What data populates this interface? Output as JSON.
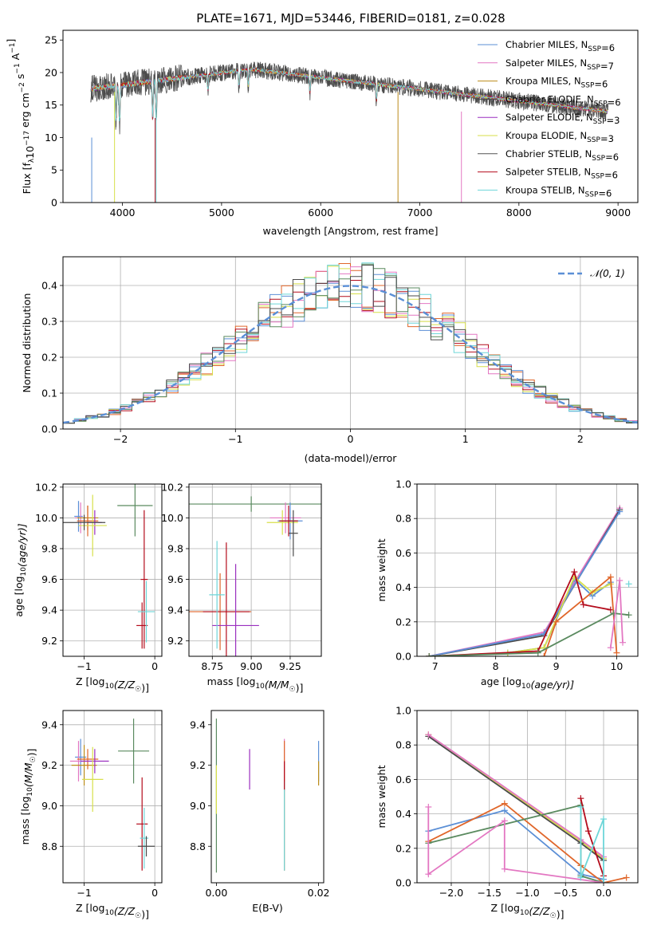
{
  "title": "PLATE=1671, MJD=53446, FIBERID=0181, z=0.028",
  "colors": {
    "series": [
      "#5b8fd6",
      "#e377c2",
      "#bb8c1a",
      "#4a4a4a",
      "#9a2fbf",
      "#d7df4a",
      "#555555",
      "#b40c1c",
      "#6ed6d8"
    ],
    "p2": [
      "#e0662a",
      "#5b8fd6",
      "#d7df4a",
      "#b40c1c",
      "#e377c2",
      "#6ed6d8",
      "#5a8a5f",
      "#4a4a4a"
    ],
    "grid": "#b0b0b0",
    "model_normal": "#5b8fd6"
  },
  "chart_data": [
    {
      "id": "spectrum",
      "type": "line",
      "xlabel": "wavelength [Angstrom, rest frame]",
      "ylabel_parts": [
        "Flux [f",
        "λ",
        "10",
        "−17",
        " erg cm",
        "−2",
        " s",
        "−1",
        " A",
        "−1",
        "]"
      ],
      "xlim": [
        3400,
        9200
      ],
      "ylim": [
        0,
        26.5
      ],
      "xticks": [
        4000,
        5000,
        6000,
        7000,
        8000,
        9000
      ],
      "yticks": [
        0,
        5,
        10,
        15,
        20,
        25
      ],
      "grid": false,
      "legend_placement": "top-right",
      "series": [
        {
          "label_main": "Chabrier MILES, N",
          "label_sub": "SSP",
          "label_tail": "=6"
        },
        {
          "label_main": "Salpeter MILES, N",
          "label_sub": "SSP",
          "label_tail": "=7"
        },
        {
          "label_main": "Kroupa MILES, N",
          "label_sub": "SSP",
          "label_tail": "=6"
        },
        {
          "label_main": "Chabrier ELODIE, N",
          "label_sub": "SSP",
          "label_tail": "=6"
        },
        {
          "label_main": "Salpeter ELODIE, N",
          "label_sub": "SSP",
          "label_tail": "=3"
        },
        {
          "label_main": "Kroupa ELODIE, N",
          "label_sub": "SSP",
          "label_tail": "=3"
        },
        {
          "label_main": "Chabrier STELIB, N",
          "label_sub": "SSP",
          "label_tail": "=6"
        },
        {
          "label_main": "Salpeter STELIB, N",
          "label_sub": "SSP",
          "label_tail": "=6"
        },
        {
          "label_main": "Kroupa STELIB, N",
          "label_sub": "SSP",
          "label_tail": "=6"
        }
      ],
      "data_approx": {
        "wl_start": 3680,
        "wl_end": 8900,
        "flux_blue": 17.5,
        "flux_peak": 20.5,
        "flux_red": 14.0,
        "absorption_features": [
          3935,
          3970,
          4305,
          4340,
          4861,
          5175,
          5270,
          5893,
          6563
        ]
      }
    },
    {
      "id": "residuals",
      "type": "histogram",
      "xlabel": "(data-model)/error",
      "ylabel": "Normed distribution",
      "xlim": [
        -2.5,
        2.5
      ],
      "ylim": [
        0,
        0.48
      ],
      "xticks": [
        -2,
        -1,
        0,
        1,
        2
      ],
      "yticks": [
        0.0,
        0.1,
        0.2,
        0.3,
        0.4
      ],
      "grid": true,
      "bin_width": 0.1,
      "bin_start": -2.5,
      "legend_placement": "top-right",
      "model": {
        "label": "𝒩(0, 1)",
        "mean": 0,
        "sigma": 1
      }
    },
    {
      "id": "age-vs-Z",
      "type": "errorbar",
      "xlabel_main": "Z [log",
      "xlabel_sub": "10",
      "xlabel_tail": "(Z/Z",
      "xlabel_sun": "☉",
      "xlabel_end": ")]",
      "ylabel_main": "age  [log",
      "ylabel_sub": "10",
      "ylabel_tail": "(age/yr)]",
      "xlim": [
        -1.3,
        0.1
      ],
      "ylim": [
        9.1,
        10.22
      ],
      "xticks": [
        -1,
        0
      ],
      "yticks": [
        9.2,
        9.4,
        9.6,
        9.8,
        10.0,
        10.2
      ],
      "grid": true,
      "points": [
        {
          "x": -1.08,
          "y": 10.01,
          "xerr": 0.06,
          "yerr": 0.1,
          "c": 0
        },
        {
          "x": -1.05,
          "y": 10.0,
          "xerr": 0.08,
          "yerr": 0.1,
          "c": 1
        },
        {
          "x": -0.95,
          "y": 10.0,
          "xerr": 0.15,
          "yerr": 0.08,
          "c": 2
        },
        {
          "x": -0.95,
          "y": 9.98,
          "xerr": 0.15,
          "yerr": 0.1,
          "c": 3
        },
        {
          "x": -0.85,
          "y": 9.97,
          "xerr": 0.1,
          "yerr": 0.08,
          "c": 4
        },
        {
          "x": -0.88,
          "y": 9.95,
          "xerr": 0.2,
          "yerr": 0.2,
          "c": 5
        },
        {
          "x": -1.0,
          "y": 9.97,
          "xerr": 0.3,
          "yerr": 0.05,
          "c": 6
        },
        {
          "x": -0.28,
          "y": 10.08,
          "xerr": 0.25,
          "yerr": 0.2,
          "c": 7
        },
        {
          "x": -0.15,
          "y": 9.6,
          "xerr": 0.05,
          "yerr": 0.45,
          "c": 8
        },
        {
          "x": -0.18,
          "y": 9.3,
          "xerr": 0.08,
          "yerr": 0.15,
          "c": 9
        },
        {
          "x": -0.12,
          "y": 9.39,
          "xerr": 0.12,
          "yerr": 0.2,
          "c": 10
        }
      ]
    },
    {
      "id": "age-vs-mass",
      "type": "errorbar",
      "xlabel_main": "mass [log",
      "xlabel_sub": "10",
      "xlabel_tail": "(M/M",
      "xlabel_sun": "☉",
      "xlabel_end": ")]",
      "xlim": [
        8.6,
        9.45
      ],
      "ylim": [
        9.1,
        10.22
      ],
      "xticks": [
        8.75,
        9.0,
        9.25
      ],
      "yticks": [
        9.2,
        9.4,
        9.6,
        9.8,
        10.0,
        10.2
      ],
      "grid": true,
      "points": [
        {
          "x": 9.0,
          "y": 10.09,
          "xerr": 0.45,
          "yerr": 0.05,
          "c": 7
        },
        {
          "x": 9.22,
          "y": 10.0,
          "xerr": 0.1,
          "yerr": 0.1,
          "c": 1
        },
        {
          "x": 9.25,
          "y": 9.98,
          "xerr": 0.08,
          "yerr": 0.12,
          "c": 0
        },
        {
          "x": 9.2,
          "y": 9.97,
          "xerr": 0.1,
          "yerr": 0.08,
          "c": 5
        },
        {
          "x": 9.24,
          "y": 9.98,
          "xerr": 0.06,
          "yerr": 0.1,
          "c": 9
        },
        {
          "x": 9.27,
          "y": 9.9,
          "xerr": 0.03,
          "yerr": 0.15,
          "c": 6
        },
        {
          "x": 8.8,
          "y": 9.39,
          "xerr": 0.2,
          "yerr": 0.25,
          "c": 3
        },
        {
          "x": 8.84,
          "y": 9.39,
          "xerr": 0.15,
          "yerr": 0.45,
          "c": 8
        },
        {
          "x": 8.9,
          "y": 9.3,
          "xerr": 0.15,
          "yerr": 0.4,
          "c": 4
        },
        {
          "x": 8.78,
          "y": 9.5,
          "xerr": 0.05,
          "yerr": 0.35,
          "c": 10
        }
      ]
    },
    {
      "id": "weight-vs-age",
      "type": "line",
      "xlabel_main": "age  [log",
      "xlabel_sub": "10",
      "xlabel_tail": "(age/yr)]",
      "ylabel": "mass weight",
      "xlim": [
        6.7,
        10.35
      ],
      "ylim": [
        0,
        1.0
      ],
      "xticks": [
        7,
        8,
        9,
        10
      ],
      "yticks": [
        0.0,
        0.2,
        0.4,
        0.6,
        0.8,
        1.0
      ],
      "grid": true,
      "series": [
        {
          "c": 1,
          "x": [
            6.9,
            8.8,
            10.05
          ],
          "y": [
            0.0,
            0.14,
            0.86
          ]
        },
        {
          "c": 6,
          "x": [
            6.9,
            8.8,
            10.05
          ],
          "y": [
            0.0,
            0.12,
            0.85
          ]
        },
        {
          "c": 4,
          "x": [
            6.9,
            8.8,
            10.05
          ],
          "y": [
            0.0,
            0.13,
            0.84
          ]
        },
        {
          "c": 0,
          "x": [
            6.9,
            8.2,
            8.8,
            9.3,
            9.6,
            9.9
          ],
          "y": [
            0.0,
            0.02,
            0.05,
            0.45,
            0.35,
            0.43
          ]
        },
        {
          "c": 5,
          "x": [
            6.9,
            8.2,
            8.8,
            9.3,
            9.6,
            9.9
          ],
          "y": [
            0.0,
            0.02,
            0.05,
            0.46,
            0.37,
            0.42
          ]
        },
        {
          "c": 3,
          "x": [
            6.9,
            8.7,
            9.3,
            9.45,
            9.9
          ],
          "y": [
            0.0,
            0.03,
            0.49,
            0.3,
            0.27
          ]
        },
        {
          "c": 2,
          "x": [
            8.8,
            9.0,
            9.9,
            10.0
          ],
          "y": [
            0.0,
            0.2,
            0.46,
            0.02
          ]
        },
        {
          "c": 7,
          "x": [
            6.9,
            8.7,
            9.95,
            10.2
          ],
          "y": [
            0.0,
            0.02,
            0.25,
            0.24
          ]
        },
        {
          "c": 10,
          "x": [
            10.2
          ],
          "y": [
            0.42
          ]
        },
        {
          "c": 9,
          "x": [
            9.9,
            10.05,
            10.1
          ],
          "y": [
            0.05,
            0.44,
            0.08
          ]
        }
      ]
    },
    {
      "id": "mass-vs-Z",
      "type": "errorbar",
      "xlabel_main": "Z [log",
      "xlabel_sub": "10",
      "xlabel_tail": "(Z/Z",
      "xlabel_sun": "☉",
      "xlabel_end": ")]",
      "ylabel_main": "mass [log",
      "ylabel_sub": "10",
      "ylabel_tail": "(M/M",
      "ylabel_sun": "☉",
      "ylabel_end": ")]",
      "xlim": [
        -1.3,
        0.1
      ],
      "ylim": [
        8.62,
        9.47
      ],
      "xticks": [
        -1,
        0
      ],
      "yticks": [
        8.8,
        9.0,
        9.2,
        9.4
      ],
      "grid": true,
      "points": [
        {
          "x": -1.05,
          "y": 9.24,
          "xerr": 0.08,
          "yerr": 0.09,
          "c": 0
        },
        {
          "x": -1.08,
          "y": 9.22,
          "xerr": 0.12,
          "yerr": 0.1,
          "c": 1
        },
        {
          "x": -1.0,
          "y": 9.2,
          "xerr": 0.18,
          "yerr": 0.1,
          "c": 2
        },
        {
          "x": -0.95,
          "y": 9.23,
          "xerr": 0.15,
          "yerr": 0.05,
          "c": 3
        },
        {
          "x": -0.85,
          "y": 9.22,
          "xerr": 0.2,
          "yerr": 0.06,
          "c": 4
        },
        {
          "x": -0.88,
          "y": 9.13,
          "xerr": 0.15,
          "yerr": 0.16,
          "c": 5
        },
        {
          "x": -0.3,
          "y": 9.27,
          "xerr": 0.22,
          "yerr": 0.16,
          "c": 7
        },
        {
          "x": -0.18,
          "y": 8.91,
          "xerr": 0.08,
          "yerr": 0.23,
          "c": 9
        },
        {
          "x": -0.15,
          "y": 8.84,
          "xerr": 0.06,
          "yerr": 0.15,
          "c": 10
        },
        {
          "x": -0.12,
          "y": 8.8,
          "xerr": 0.12,
          "yerr": 0.05,
          "c": 6
        }
      ]
    },
    {
      "id": "mass-vs-EBV",
      "type": "errorbar",
      "xlabel": "E(B-V)",
      "xlim": [
        -0.001,
        0.021
      ],
      "ylim": [
        8.62,
        9.47
      ],
      "xticks": [
        0.0,
        0.02
      ],
      "yticks": [
        8.8,
        9.0,
        9.2,
        9.4
      ],
      "grid": false,
      "points": [
        {
          "x": 0.0,
          "y": 9.05,
          "xerr": 0.0,
          "yerr": 0.38,
          "c": 7
        },
        {
          "x": 0.0,
          "y": 9.08,
          "xerr": 0.0,
          "yerr": 0.12,
          "c": 5
        },
        {
          "x": 0.0065,
          "y": 9.18,
          "xerr": 0.0,
          "yerr": 0.1,
          "c": 4
        },
        {
          "x": 0.0133,
          "y": 9.2,
          "xerr": 0.0,
          "yerr": 0.13,
          "c": 1
        },
        {
          "x": 0.0133,
          "y": 9.0,
          "xerr": 0.0,
          "yerr": 0.32,
          "c": 3
        },
        {
          "x": 0.0133,
          "y": 8.9,
          "xerr": 0.0,
          "yerr": 0.22,
          "c": 10
        },
        {
          "x": 0.0133,
          "y": 9.15,
          "xerr": 0.0,
          "yerr": 0.07,
          "c": 9
        },
        {
          "x": 0.02,
          "y": 9.22,
          "xerr": 0.0,
          "yerr": 0.1,
          "c": 0
        },
        {
          "x": 0.02,
          "y": 9.16,
          "xerr": 0.0,
          "yerr": 0.06,
          "c": 2
        }
      ]
    },
    {
      "id": "weight-vs-Z",
      "type": "line",
      "xlabel_main": "Z [log",
      "xlabel_sub": "10",
      "xlabel_tail": "(Z/Z",
      "xlabel_sun": "☉",
      "xlabel_end": ")]",
      "ylabel": "mass weight",
      "xlim": [
        -2.45,
        0.45
      ],
      "ylim": [
        0,
        1.0
      ],
      "xticks": [
        -2.0,
        -1.5,
        -1.0,
        -0.5,
        0.0
      ],
      "yticks": [
        0.0,
        0.2,
        0.4,
        0.6,
        0.8,
        1.0
      ],
      "grid": true,
      "series": [
        {
          "c": 5,
          "x": [
            -2.3,
            -0.3,
            0.0
          ],
          "y": [
            0.86,
            0.24,
            0.14
          ]
        },
        {
          "c": 6,
          "x": [
            -2.3,
            -0.3,
            0.0
          ],
          "y": [
            0.85,
            0.23,
            0.13
          ]
        },
        {
          "c": 1,
          "x": [
            -2.3,
            -0.3,
            0.0
          ],
          "y": [
            0.86,
            0.25,
            0.15
          ]
        },
        {
          "c": 0,
          "x": [
            -2.3,
            -1.3,
            -0.3,
            0.0
          ],
          "y": [
            0.3,
            0.42,
            0.05,
            0.02
          ]
        },
        {
          "c": 2,
          "x": [
            -2.3,
            -1.3,
            -0.3,
            0.0,
            0.3
          ],
          "y": [
            0.24,
            0.46,
            0.1,
            0.0,
            0.03
          ]
        },
        {
          "c": 7,
          "x": [
            -2.3,
            -0.3,
            -0.3,
            0.0
          ],
          "y": [
            0.23,
            0.45,
            0.04,
            0.0
          ]
        },
        {
          "c": 8,
          "x": [
            -0.3,
            -0.2,
            0.0
          ],
          "y": [
            0.49,
            0.3,
            0.04
          ]
        },
        {
          "c": 9,
          "x": [
            -2.3,
            -2.3,
            -1.3,
            -1.3,
            0.0
          ],
          "y": [
            0.44,
            0.05,
            0.36,
            0.08,
            0.0
          ]
        },
        {
          "c": 10,
          "x": [
            -0.3,
            -0.3,
            0.0,
            0.0
          ],
          "y": [
            0.44,
            0.03,
            0.37,
            0.0
          ]
        }
      ]
    }
  ]
}
